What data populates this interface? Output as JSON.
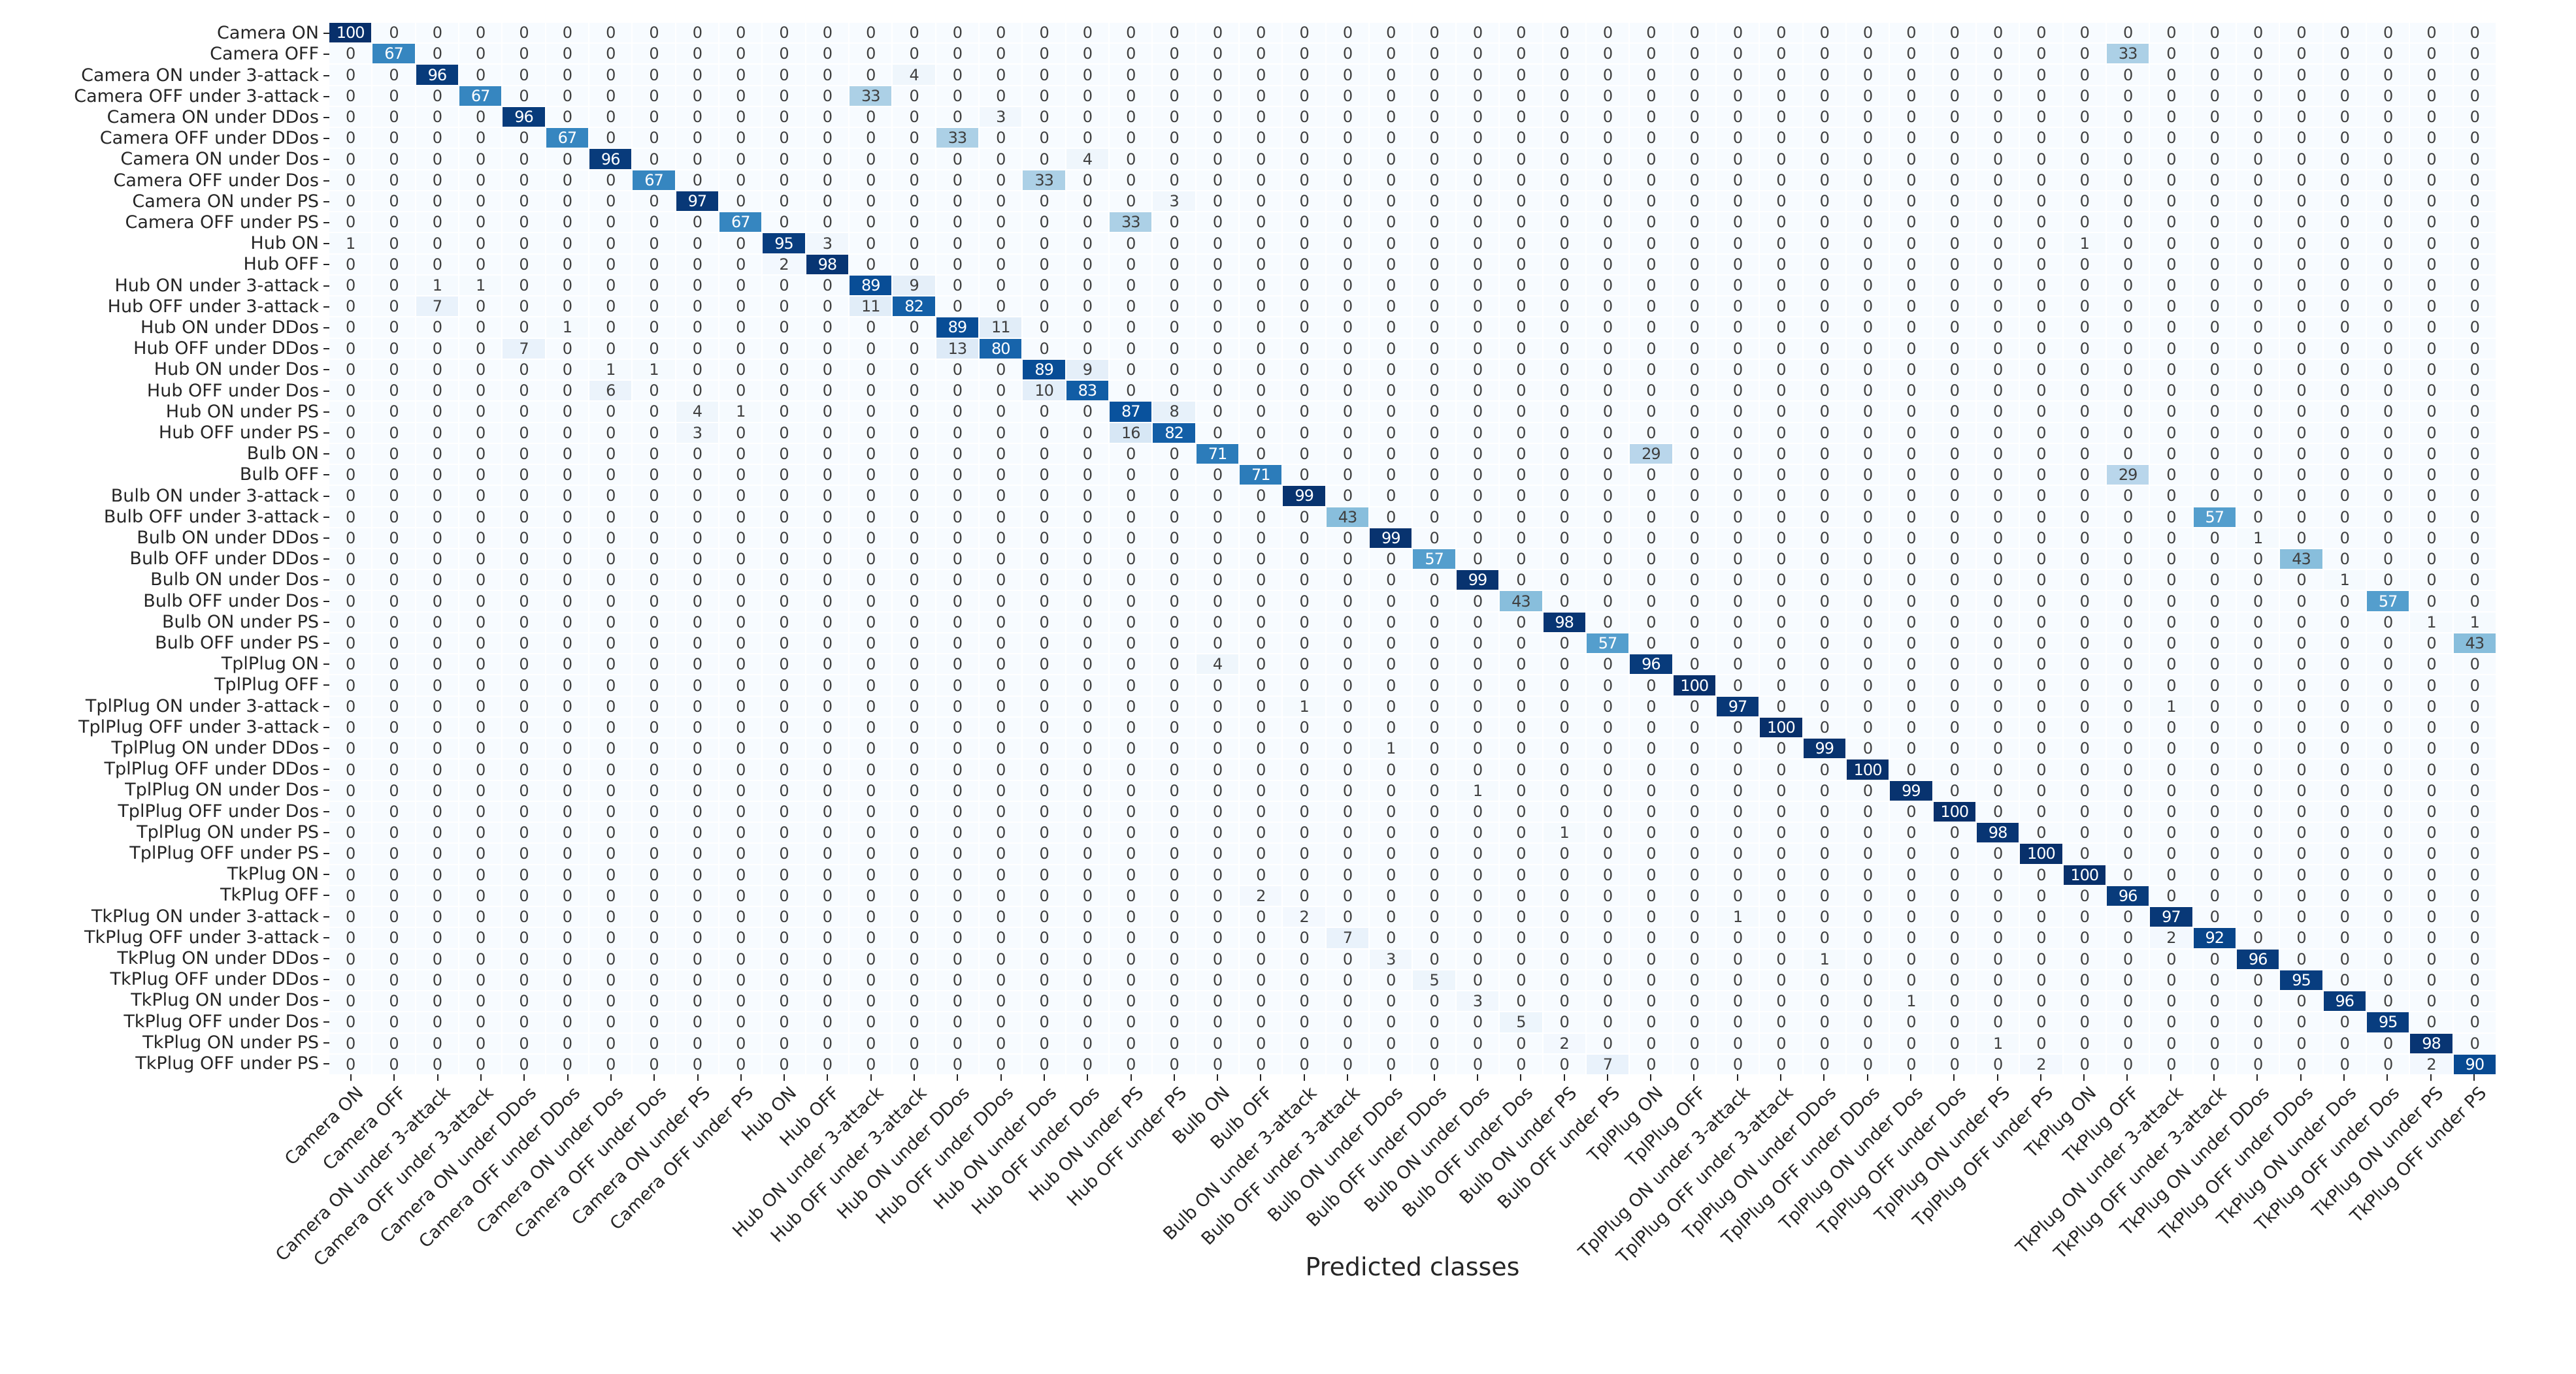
{
  "figure": {
    "x_axis_title": "Predicted classes"
  },
  "chart_data": {
    "type": "heatmap",
    "title": "",
    "xlabel": "Predicted classes",
    "ylabel": "",
    "legend_position": "none",
    "grid": "white cell separators",
    "values_are": "percent, row-normalized confusion matrix",
    "value_range": [
      0,
      100
    ],
    "colormap": "Blues",
    "colormap_stops": [
      [
        247,
        251,
        255
      ],
      [
        222,
        235,
        247
      ],
      [
        198,
        219,
        239
      ],
      [
        158,
        202,
        225
      ],
      [
        107,
        174,
        214
      ],
      [
        66,
        146,
        198
      ],
      [
        33,
        113,
        181
      ],
      [
        8,
        81,
        156
      ],
      [
        8,
        48,
        107
      ]
    ],
    "text_color_threshold": 50,
    "dark_text_color": "#404040",
    "light_text_color": "#ffffff",
    "y_categories": [
      "Camera ON",
      "Camera OFF",
      "Camera ON under 3-attack",
      "Camera OFF under 3-attack",
      "Camera ON under DDos",
      "Camera OFF under DDos",
      "Camera ON under Dos",
      "Camera OFF under Dos",
      "Camera ON under PS",
      "Camera OFF under PS",
      "Hub ON",
      "Hub OFF",
      "Hub ON under 3-attack",
      "Hub OFF under 3-attack",
      "Hub ON under DDos",
      "Hub OFF under DDos",
      "Hub ON under Dos",
      "Hub OFF under Dos",
      "Hub ON under PS",
      "Hub OFF under PS",
      "Bulb ON",
      "Bulb OFF",
      "Bulb ON under 3-attack",
      "Bulb OFF under 3-attack",
      "Bulb ON under DDos",
      "Bulb OFF under DDos",
      "Bulb ON under Dos",
      "Bulb OFF under Dos",
      "Bulb ON under PS",
      "Bulb OFF under PS",
      "TplPlug ON",
      "TplPlug OFF",
      "TplPlug ON under 3-attack",
      "TplPlug OFF under 3-attack",
      "TplPlug ON under DDos",
      "TplPlug OFF under DDos",
      "TplPlug ON under Dos",
      "TplPlug OFF under Dos",
      "TplPlug ON under PS",
      "TplPlug OFF under PS",
      "TkPlug ON",
      "TkPlug OFF",
      "TkPlug ON under 3-attack",
      "TkPlug OFF under 3-attack",
      "TkPlug ON under DDos",
      "TkPlug OFF under DDos",
      "TkPlug ON under Dos",
      "TkPlug OFF under Dos",
      "TkPlug ON under PS",
      "TkPlug OFF under PS"
    ],
    "x_categories": [
      "Camera ON",
      "Camera OFF",
      "Camera ON under 3-attack",
      "Camera OFF under 3-attack",
      "Camera ON under DDos",
      "Camera OFF under DDos",
      "Camera ON under Dos",
      "Camera OFF under Dos",
      "Camera ON under PS",
      "Camera OFF under PS",
      "Hub ON",
      "Hub OFF",
      "Hub ON under 3-attack",
      "Hub OFF under 3-attack",
      "Hub ON under DDos",
      "Hub OFF under DDos",
      "Hub ON under Dos",
      "Hub OFF under Dos",
      "Hub ON under PS",
      "Hub OFF under PS",
      "Bulb ON",
      "Bulb OFF",
      "Bulb ON under 3-attack",
      "Bulb OFF under 3-attack",
      "Bulb ON under DDos",
      "Bulb OFF under DDos",
      "Bulb ON under Dos",
      "Bulb OFF under Dos",
      "Bulb ON under PS",
      "Bulb OFF under PS",
      "TplPlug ON",
      "TplPlug OFF",
      "TplPlug ON under 3-attack",
      "TplPlug OFF under 3-attack",
      "TplPlug ON under DDos",
      "TplPlug OFF under DDos",
      "TplPlug ON under Dos",
      "TplPlug OFF under Dos",
      "TplPlug ON under PS",
      "TplPlug OFF under PS",
      "TkPlug ON",
      "TkPlug OFF",
      "TkPlug ON under 3-attack",
      "TkPlug OFF under 3-attack",
      "TkPlug ON under DDos",
      "TkPlug OFF under DDos",
      "TkPlug ON under Dos",
      "TkPlug OFF under Dos",
      "TkPlug ON under PS",
      "TkPlug OFF under PS"
    ],
    "default_value": 0,
    "entries_format": [
      "row_1_indexed",
      "col_1_indexed",
      "value"
    ],
    "entries": [
      [
        1,
        1,
        100
      ],
      [
        2,
        2,
        67
      ],
      [
        2,
        42,
        33
      ],
      [
        3,
        3,
        96
      ],
      [
        3,
        14,
        4
      ],
      [
        4,
        4,
        67
      ],
      [
        4,
        13,
        33
      ],
      [
        5,
        5,
        96
      ],
      [
        5,
        16,
        3
      ],
      [
        6,
        6,
        67
      ],
      [
        6,
        15,
        33
      ],
      [
        7,
        7,
        96
      ],
      [
        7,
        18,
        4
      ],
      [
        8,
        8,
        67
      ],
      [
        8,
        17,
        33
      ],
      [
        9,
        9,
        97
      ],
      [
        9,
        20,
        3
      ],
      [
        10,
        10,
        67
      ],
      [
        10,
        19,
        33
      ],
      [
        11,
        1,
        1
      ],
      [
        11,
        11,
        95
      ],
      [
        11,
        12,
        3
      ],
      [
        11,
        41,
        1
      ],
      [
        12,
        11,
        2
      ],
      [
        12,
        12,
        98
      ],
      [
        13,
        3,
        1
      ],
      [
        13,
        4,
        1
      ],
      [
        13,
        13,
        89
      ],
      [
        13,
        14,
        9
      ],
      [
        14,
        3,
        7
      ],
      [
        14,
        13,
        11
      ],
      [
        14,
        14,
        82
      ],
      [
        15,
        6,
        1
      ],
      [
        15,
        15,
        89
      ],
      [
        15,
        16,
        11
      ],
      [
        16,
        5,
        7
      ],
      [
        16,
        15,
        13
      ],
      [
        16,
        16,
        80
      ],
      [
        17,
        7,
        1
      ],
      [
        17,
        8,
        1
      ],
      [
        17,
        17,
        89
      ],
      [
        17,
        18,
        9
      ],
      [
        18,
        7,
        6
      ],
      [
        18,
        17,
        10
      ],
      [
        18,
        18,
        83
      ],
      [
        19,
        9,
        4
      ],
      [
        19,
        10,
        1
      ],
      [
        19,
        19,
        87
      ],
      [
        19,
        20,
        8
      ],
      [
        20,
        9,
        3
      ],
      [
        20,
        19,
        16
      ],
      [
        20,
        20,
        82
      ],
      [
        21,
        21,
        71
      ],
      [
        21,
        31,
        29
      ],
      [
        22,
        22,
        71
      ],
      [
        22,
        42,
        29
      ],
      [
        23,
        23,
        99
      ],
      [
        24,
        24,
        43
      ],
      [
        24,
        44,
        57
      ],
      [
        25,
        25,
        99
      ],
      [
        25,
        45,
        1
      ],
      [
        26,
        26,
        57
      ],
      [
        26,
        46,
        43
      ],
      [
        27,
        27,
        99
      ],
      [
        27,
        47,
        1
      ],
      [
        28,
        28,
        43
      ],
      [
        28,
        48,
        57
      ],
      [
        29,
        29,
        98
      ],
      [
        29,
        49,
        1
      ],
      [
        29,
        50,
        1
      ],
      [
        30,
        30,
        57
      ],
      [
        30,
        50,
        43
      ],
      [
        31,
        21,
        4
      ],
      [
        31,
        31,
        96
      ],
      [
        32,
        32,
        100
      ],
      [
        33,
        23,
        1
      ],
      [
        33,
        33,
        97
      ],
      [
        33,
        43,
        1
      ],
      [
        34,
        34,
        100
      ],
      [
        35,
        25,
        1
      ],
      [
        35,
        35,
        99
      ],
      [
        36,
        36,
        100
      ],
      [
        37,
        27,
        1
      ],
      [
        37,
        37,
        99
      ],
      [
        38,
        38,
        100
      ],
      [
        39,
        29,
        1
      ],
      [
        39,
        39,
        98
      ],
      [
        40,
        40,
        100
      ],
      [
        41,
        41,
        100
      ],
      [
        42,
        22,
        2
      ],
      [
        42,
        42,
        96
      ],
      [
        43,
        23,
        2
      ],
      [
        43,
        33,
        1
      ],
      [
        43,
        43,
        97
      ],
      [
        44,
        24,
        7
      ],
      [
        44,
        43,
        2
      ],
      [
        44,
        44,
        92
      ],
      [
        45,
        25,
        3
      ],
      [
        45,
        35,
        1
      ],
      [
        45,
        45,
        96
      ],
      [
        46,
        26,
        5
      ],
      [
        46,
        46,
        95
      ],
      [
        47,
        27,
        3
      ],
      [
        47,
        37,
        1
      ],
      [
        47,
        47,
        96
      ],
      [
        48,
        28,
        5
      ],
      [
        48,
        48,
        95
      ],
      [
        49,
        29,
        2
      ],
      [
        49,
        39,
        1
      ],
      [
        49,
        49,
        98
      ],
      [
        50,
        30,
        7
      ],
      [
        50,
        40,
        2
      ],
      [
        50,
        49,
        2
      ],
      [
        50,
        50,
        90
      ]
    ]
  }
}
